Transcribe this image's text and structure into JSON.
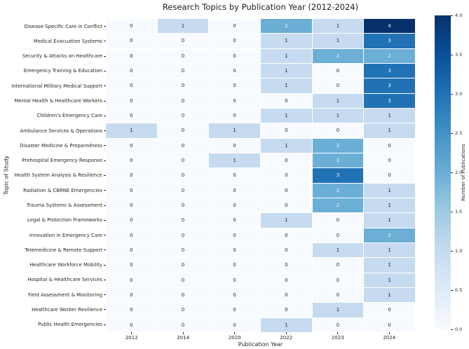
{
  "figure": {
    "background": "#ffffff"
  },
  "chart_data": {
    "type": "heatmap",
    "title": "Research Topics by Publication Year (2012-2024)",
    "xlabel": "Publication Year",
    "ylabel": "Topic of Study",
    "categories": [
      "2012",
      "2014",
      "2020",
      "2022",
      "2023",
      "2024"
    ],
    "rows": [
      "Disease-Specific Care in Conflict",
      "Medical Evacuation Systems",
      "Security & Attacks on Healthcare",
      "Emergency Training & Education",
      "International Military Medical Support",
      "Mental Health & Healthcare Workers",
      "Children's Emergency Care",
      "Ambulance Services & Operations",
      "Disaster Medicine & Preparedness",
      "Prehospital Emergency Response",
      "Health System Analysis & Resilience",
      "Radiation & CBRNE Emergencies",
      "Trauma Systems & Assessment",
      "Legal & Protection Frameworks",
      "Innovation in Emergency Care",
      "Telemedicine & Remote Support",
      "Healthcare Workforce Mobility",
      "Hospital & Healthcare Services",
      "Field Assessment & Monitoring",
      "Healthcare Worker Resilience",
      "Public Health Emergencies"
    ],
    "values": [
      [
        0,
        1,
        0,
        2,
        1,
        4
      ],
      [
        0,
        0,
        0,
        1,
        1,
        3
      ],
      [
        0,
        0,
        0,
        1,
        2,
        2
      ],
      [
        0,
        0,
        0,
        1,
        0,
        3
      ],
      [
        0,
        0,
        0,
        1,
        0,
        3
      ],
      [
        0,
        0,
        0,
        0,
        1,
        3
      ],
      [
        0,
        0,
        0,
        1,
        1,
        1
      ],
      [
        1,
        0,
        1,
        0,
        0,
        1
      ],
      [
        0,
        0,
        0,
        1,
        2,
        0
      ],
      [
        0,
        0,
        1,
        0,
        2,
        0
      ],
      [
        0,
        0,
        0,
        0,
        3,
        0
      ],
      [
        0,
        0,
        0,
        0,
        2,
        1
      ],
      [
        0,
        0,
        0,
        0,
        2,
        1
      ],
      [
        0,
        0,
        0,
        1,
        0,
        1
      ],
      [
        0,
        0,
        0,
        0,
        0,
        2
      ],
      [
        0,
        0,
        0,
        0,
        1,
        1
      ],
      [
        0,
        0,
        0,
        0,
        0,
        1
      ],
      [
        0,
        0,
        0,
        0,
        0,
        1
      ],
      [
        0,
        0,
        0,
        0,
        0,
        1
      ],
      [
        0,
        0,
        0,
        0,
        1,
        0
      ],
      [
        0,
        0,
        0,
        1,
        0,
        0
      ]
    ],
    "vmin": 0,
    "vmax": 4,
    "colormap": "Blues",
    "cell_colors": {
      "0": "#f7fbff",
      "1": "#c6dbef",
      "2": "#6baed6",
      "3": "#2171b5",
      "4": "#08306b"
    },
    "annot_colors": {
      "0": "#262626",
      "1": "#262626",
      "2": "#f7f7f7",
      "3": "#f7f7f7",
      "4": "#f7f7f7"
    },
    "grid": "white-cell-borders",
    "legend_position": "right-colorbar",
    "colorbar": {
      "label": "Number of Publications",
      "ticks_top_to_bottom": [
        "4.0",
        "3.5",
        "3.0",
        "2.5",
        "2.0",
        "1.5",
        "1.0",
        "0.5",
        "0.0"
      ],
      "gradient_top_to_bottom": [
        "#08306b",
        "#08519c",
        "#2171b5",
        "#4292c6",
        "#6baed6",
        "#9ecae1",
        "#c6dbef",
        "#deebf7",
        "#f7fbff"
      ]
    }
  }
}
